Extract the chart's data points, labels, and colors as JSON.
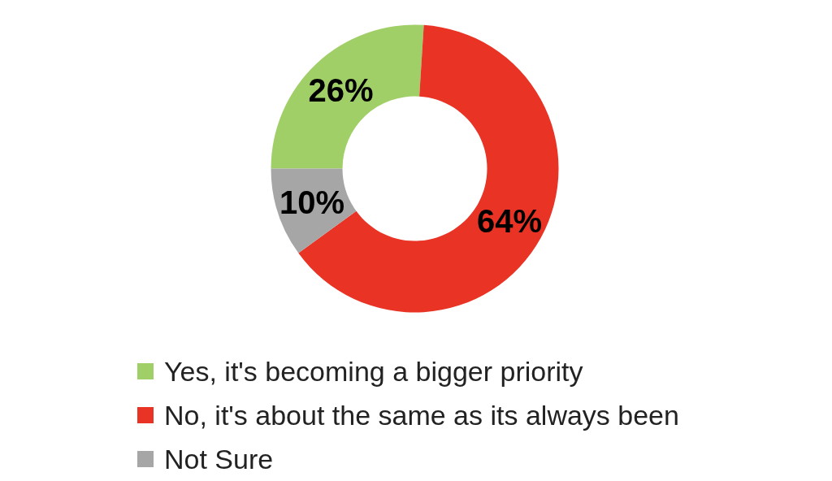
{
  "chart_data": {
    "type": "donut",
    "categories": [
      "Yes, it's becoming a bigger priority",
      "No, it's about the same as its always been",
      "Not Sure"
    ],
    "values": [
      26,
      64,
      10
    ],
    "colors": [
      "#a0cf67",
      "#e83325",
      "#a6a6a6"
    ],
    "value_labels": [
      "26%",
      "64%",
      "10%"
    ],
    "legend": "bottom"
  }
}
